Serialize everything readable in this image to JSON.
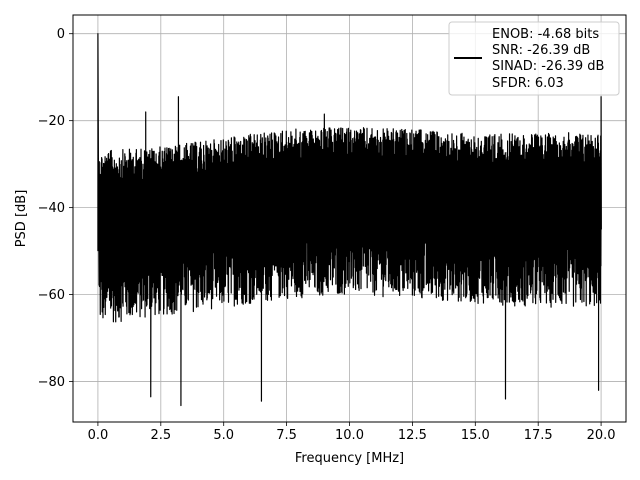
{
  "chart_data": {
    "type": "line",
    "title": "",
    "xlabel": "Frequency [MHz]",
    "ylabel": "PSD [dB]",
    "xlim": [
      -0.99,
      20.99
    ],
    "ylim": [
      -89.3,
      4.3
    ],
    "xticks": [
      0.0,
      2.5,
      5.0,
      7.5,
      10.0,
      12.5,
      15.0,
      17.5,
      20.0
    ],
    "xtick_labels": [
      "0.0",
      "2.5",
      "5.0",
      "7.5",
      "10.0",
      "12.5",
      "15.0",
      "17.5",
      "20.0"
    ],
    "yticks": [
      0,
      -20,
      -40,
      -60,
      -80
    ],
    "ytick_labels": [
      "0",
      "−20",
      "−40",
      "−60",
      "−80"
    ],
    "grid": true,
    "legend_position": "upper-right",
    "legend_entries": [
      "ENOB: -4.68 bits",
      "SNR: -26.39 dB",
      "SINAD: -26.39 dB",
      "SFDR: 6.03"
    ],
    "series": [
      {
        "name": "ENOB: -4.68 bits\nSNR: -26.39 dB\nSINAD: -26.39 dB\nSFDR: 6.03",
        "color": "#000000",
        "x_range": [
          0.0,
          20.0
        ],
        "description_points": {
          "dc_peak": [
            0.0,
            0.0
          ],
          "upper_envelope": [
            [
              0.05,
              -27
            ],
            [
              2.5,
              -26
            ],
            [
              5.0,
              -24
            ],
            [
              7.5,
              -22
            ],
            [
              10.0,
              -21.5
            ],
            [
              12.5,
              -22
            ],
            [
              15.0,
              -23
            ],
            [
              17.5,
              -23
            ],
            [
              20.0,
              -22.5
            ]
          ],
          "lower_envelope": [
            [
              0.05,
              -67
            ],
            [
              2.5,
              -65
            ],
            [
              5.0,
              -63
            ],
            [
              7.5,
              -61
            ],
            [
              10.0,
              -60
            ],
            [
              12.5,
              -61
            ],
            [
              15.0,
              -62
            ],
            [
              17.5,
              -63
            ],
            [
              20.0,
              -63
            ]
          ],
          "spurs": [
            [
              3.2,
              -14.5
            ],
            [
              1.9,
              -18.0
            ],
            [
              9.0,
              -18.5
            ],
            [
              20.0,
              -14.5
            ]
          ],
          "dips": [
            [
              3.3,
              -85.5
            ],
            [
              2.1,
              -83.5
            ],
            [
              6.5,
              -84.5
            ],
            [
              16.2,
              -84.0
            ],
            [
              19.9,
              -82.0
            ]
          ]
        }
      }
    ]
  }
}
